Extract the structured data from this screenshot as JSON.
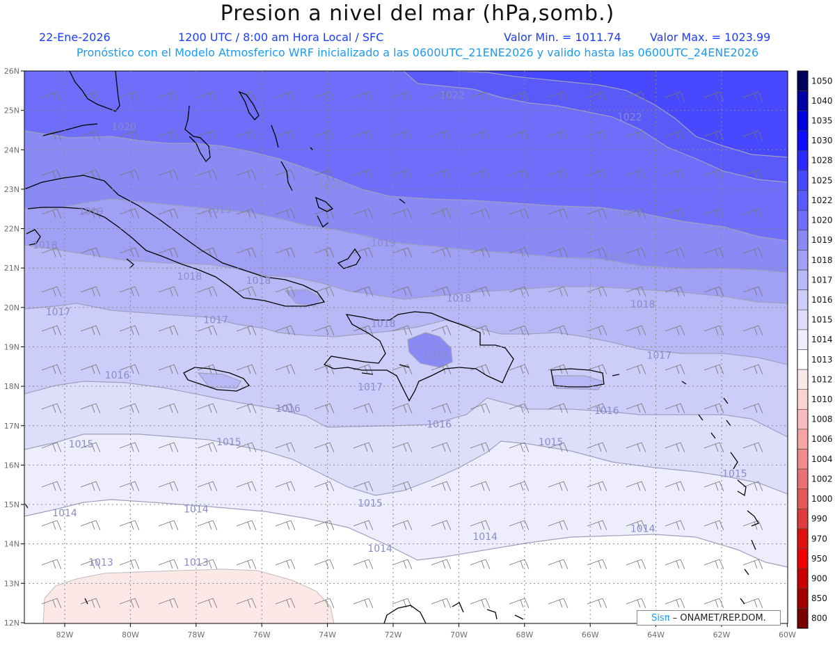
{
  "title": "Presion a nivel del mar (hPa,somb.)",
  "header": {
    "date": "22-Ene-2026",
    "time": "1200 UTC / 8:00 am Hora Local / SFC",
    "valmin": "Valor Min. = 1011.74",
    "valmax": "Valor Max. = 1023.99",
    "model": "Pronóstico con el Modelo Atmosferico WRF inicializado a las 0600UTC_21ENE2026 y valido hasta las  0600UTC_24ENE2026"
  },
  "axes": {
    "lat_labels": [
      "26N",
      "25N",
      "24N",
      "23N",
      "22N",
      "21N",
      "20N",
      "19N",
      "18N",
      "17N",
      "16N",
      "15N",
      "14N",
      "13N",
      "12N"
    ],
    "lon_labels": [
      "82W",
      "80W",
      "78W",
      "76W",
      "74W",
      "72W",
      "70W",
      "68W",
      "66W",
      "64W",
      "62W",
      "60W"
    ]
  },
  "isobars": [
    {
      "text": "1022",
      "lon": -70.2,
      "lat": 25.3
    },
    {
      "text": "1022",
      "lon": -64.8,
      "lat": 24.75
    },
    {
      "text": "1020",
      "lon": -80.2,
      "lat": 24.5
    },
    {
      "text": "1020",
      "lon": -73.9,
      "lat": 23.05
    },
    {
      "text": "1020",
      "lon": -70.4,
      "lat": 22.35
    },
    {
      "text": "1020",
      "lon": -64.8,
      "lat": 22.3
    },
    {
      "text": "1019",
      "lon": -81.2,
      "lat": 22.35
    },
    {
      "text": "1019",
      "lon": -77.3,
      "lat": 22.4
    },
    {
      "text": "1019",
      "lon": -72.3,
      "lat": 21.55
    },
    {
      "text": "1019",
      "lon": -65.2,
      "lat": 21.2
    },
    {
      "text": "1018",
      "lon": -82.6,
      "lat": 21.5
    },
    {
      "text": "1018",
      "lon": -78.2,
      "lat": 20.7
    },
    {
      "text": "1018",
      "lon": -76.1,
      "lat": 20.6
    },
    {
      "text": "1018",
      "lon": -70.0,
      "lat": 20.15
    },
    {
      "text": "1018",
      "lon": -64.4,
      "lat": 20.0
    },
    {
      "text": "1018",
      "lon": -72.3,
      "lat": 19.5
    },
    {
      "text": "1018",
      "lon": -70.7,
      "lat": 18.7
    },
    {
      "text": "1017",
      "lon": -82.2,
      "lat": 19.8
    },
    {
      "text": "1017",
      "lon": -77.4,
      "lat": 19.6
    },
    {
      "text": "1017",
      "lon": -72.7,
      "lat": 17.9
    },
    {
      "text": "1017",
      "lon": -63.9,
      "lat": 18.7
    },
    {
      "text": "1016",
      "lon": -80.4,
      "lat": 18.2
    },
    {
      "text": "1016",
      "lon": -75.2,
      "lat": 17.35
    },
    {
      "text": "1016",
      "lon": -70.6,
      "lat": 16.95
    },
    {
      "text": "1016",
      "lon": -65.5,
      "lat": 17.3
    },
    {
      "text": "1015",
      "lon": -81.5,
      "lat": 16.45
    },
    {
      "text": "1015",
      "lon": -77.0,
      "lat": 16.5
    },
    {
      "text": "1015",
      "lon": -72.7,
      "lat": 14.95
    },
    {
      "text": "1015",
      "lon": -67.2,
      "lat": 16.5
    },
    {
      "text": "1015",
      "lon": -61.6,
      "lat": 15.7
    },
    {
      "text": "1014",
      "lon": -82.0,
      "lat": 14.7
    },
    {
      "text": "1014",
      "lon": -78.0,
      "lat": 14.8
    },
    {
      "text": "1014",
      "lon": -72.4,
      "lat": 13.8
    },
    {
      "text": "1014",
      "lon": -69.2,
      "lat": 14.1
    },
    {
      "text": "1014",
      "lon": -64.4,
      "lat": 14.3
    },
    {
      "text": "1013",
      "lon": -80.9,
      "lat": 13.45
    },
    {
      "text": "1013",
      "lon": -78.0,
      "lat": 13.45
    }
  ],
  "colorbar": {
    "labels": [
      "1050",
      "1040",
      "1035",
      "1030",
      "1028",
      "1025",
      "1022",
      "1020",
      "1019",
      "1018",
      "1017",
      "1016",
      "1015",
      "1014",
      "1013",
      "1012",
      "1010",
      "1008",
      "1006",
      "1004",
      "1002",
      "1000",
      "990",
      "970",
      "950",
      "900",
      "850",
      "800"
    ],
    "colors": [
      "#00005a",
      "#0000a0",
      "#0000dc",
      "#0e0eff",
      "#2a2aff",
      "#4848ff",
      "#5a5afa",
      "#6e6efa",
      "#8a8af5",
      "#a0a0f5",
      "#b8b8f7",
      "#cdcdfa",
      "#dedefb",
      "#ededfd",
      "#ffffff",
      "#fde8e8",
      "#fbd2d2",
      "#f8bcbc",
      "#f5a5a5",
      "#f08c8c",
      "#ea7272",
      "#e45858",
      "#dd3c3c",
      "#e01010",
      "#f00000",
      "#c80000",
      "#a00000",
      "#780000"
    ]
  },
  "credit": {
    "brand": "Sisπ",
    "text": "– ONAMET/REP.DOM."
  }
}
